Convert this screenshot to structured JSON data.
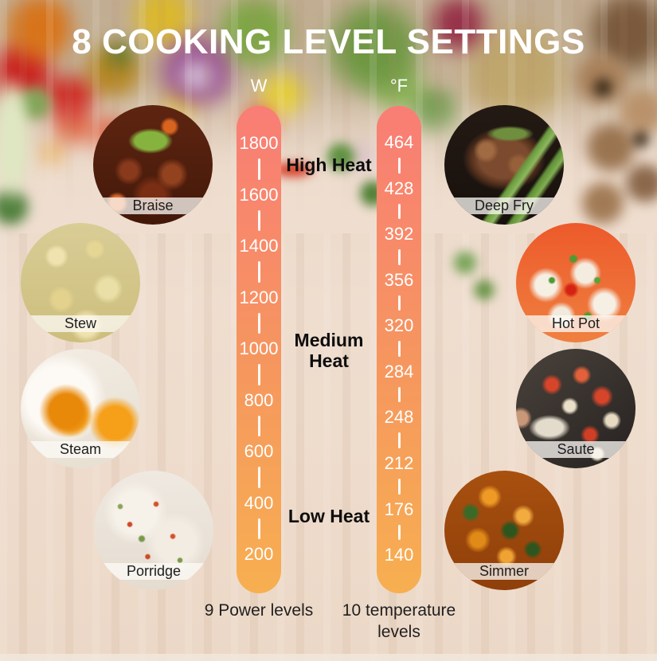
{
  "title": "8 COOKING LEVEL SETTINGS",
  "scales": {
    "power": {
      "unit": "W",
      "values": [
        "1800",
        "1600",
        "1400",
        "1200",
        "1000",
        "800",
        "600",
        "400",
        "200"
      ],
      "caption": "9 Power levels"
    },
    "temperature": {
      "unit": "°F",
      "values": [
        "464",
        "428",
        "392",
        "356",
        "320",
        "284",
        "248",
        "212",
        "176",
        "140"
      ],
      "caption": "10 temperature levels"
    }
  },
  "heat_zones": [
    {
      "label": "High Heat"
    },
    {
      "label": "Medium Heat"
    },
    {
      "label": "Low Heat"
    }
  ],
  "dishes": [
    {
      "label": "Braise"
    },
    {
      "label": "Stew"
    },
    {
      "label": "Steam"
    },
    {
      "label": "Porridge"
    },
    {
      "label": "Deep Fry"
    },
    {
      "label": "Hot Pot"
    },
    {
      "label": "Saute"
    },
    {
      "label": "Simmer"
    }
  ],
  "colors": {
    "bar_top": "#f97d75",
    "bar_bottom": "#f7af50",
    "title_color": "#ffffff",
    "heat_label_color": "#0d0d0d"
  }
}
